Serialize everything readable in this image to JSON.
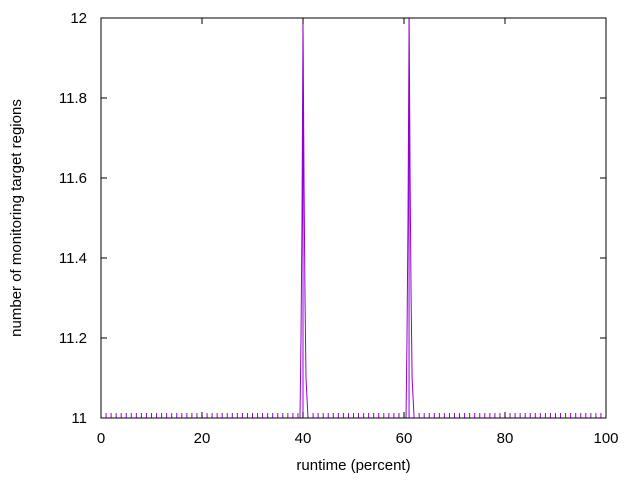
{
  "chart_data": {
    "type": "line",
    "title": "",
    "xlabel": "runtime (percent)",
    "ylabel": "number of monitoring target regions",
    "xlim": [
      0,
      100
    ],
    "ylim": [
      11,
      12
    ],
    "xticks": [
      0,
      20,
      40,
      60,
      80,
      100
    ],
    "yticks": [
      11,
      11.2,
      11.4,
      11.6,
      11.8,
      12
    ],
    "ytick_labels": [
      "11",
      "11.2",
      "11.4",
      "11.6",
      "11.8",
      "12"
    ],
    "grid": false,
    "legend": "none",
    "series": [
      {
        "color": "#9400d3",
        "x": [
          0,
          39.4,
          39.6,
          39.8,
          40.0,
          40.2,
          40.4,
          40.6,
          41.0,
          60.4,
          60.6,
          60.8,
          61.0,
          61.2,
          61.4,
          61.6,
          62.0,
          100
        ],
        "y": [
          11,
          11,
          11.2,
          11.5,
          12,
          11.6,
          11.3,
          11.1,
          11,
          11,
          11.2,
          11.5,
          12,
          11.6,
          11.3,
          11.1,
          11,
          11
        ],
        "sample_marks_x": [
          0,
          1,
          2,
          3,
          4,
          5,
          6,
          7,
          8,
          9,
          10,
          11,
          12,
          13,
          14,
          15,
          16,
          17,
          18,
          19,
          20,
          21,
          22,
          23,
          24,
          25,
          26,
          27,
          28,
          29,
          30,
          31,
          32,
          33,
          34,
          35,
          36,
          37,
          38,
          39,
          42,
          43,
          44,
          45,
          46,
          47,
          48,
          49,
          50,
          51,
          52,
          53,
          54,
          55,
          56,
          57,
          58,
          59,
          63,
          64,
          65,
          66,
          67,
          68,
          69,
          70,
          71,
          72,
          73,
          74,
          75,
          76,
          77,
          78,
          79,
          80,
          81,
          82,
          83,
          84,
          85,
          86,
          87,
          88,
          89,
          90,
          91,
          92,
          93,
          94,
          95,
          96,
          97,
          98,
          99,
          100
        ]
      }
    ]
  }
}
